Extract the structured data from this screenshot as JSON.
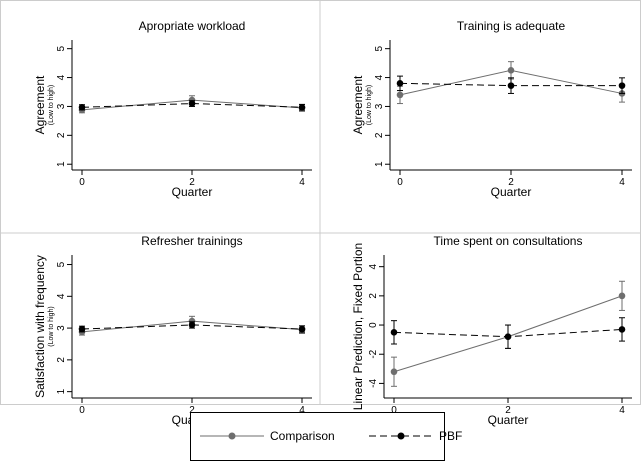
{
  "chart_data": [
    {
      "type": "line",
      "title": "Apropriate workload",
      "xlabel": "Quarter",
      "ylabel": "Agreement",
      "ylabel_sub": "(Low to high)",
      "x": [
        0,
        2,
        4
      ],
      "xticks": [
        "0",
        "2",
        "4"
      ],
      "yticks": [
        "1",
        "2",
        "3",
        "4",
        "5"
      ],
      "ylim": [
        0.8,
        5.3
      ],
      "grid": false,
      "series": [
        {
          "name": "Comparison",
          "values": [
            2.88,
            3.22,
            2.95
          ],
          "ci_low": [
            2.78,
            3.07,
            2.83
          ],
          "ci_high": [
            2.98,
            3.37,
            3.07
          ]
        },
        {
          "name": "PBF",
          "values": [
            2.97,
            3.1,
            2.97
          ],
          "ci_low": [
            2.88,
            3.0,
            2.87
          ],
          "ci_high": [
            3.06,
            3.2,
            3.07
          ]
        }
      ]
    },
    {
      "type": "line",
      "title": "Training is adequate",
      "xlabel": "Quarter",
      "ylabel": "Agreement",
      "ylabel_sub": "(Low to high)",
      "x": [
        0,
        2,
        4
      ],
      "xticks": [
        "0",
        "2",
        "4"
      ],
      "yticks": [
        "1",
        "2",
        "3",
        "4",
        "5"
      ],
      "ylim": [
        0.8,
        5.3
      ],
      "grid": false,
      "series": [
        {
          "name": "Comparison",
          "values": [
            3.4,
            4.25,
            3.45
          ],
          "ci_low": [
            3.1,
            3.95,
            3.15
          ],
          "ci_high": [
            3.7,
            4.55,
            3.75
          ]
        },
        {
          "name": "PBF",
          "values": [
            3.8,
            3.72,
            3.72
          ],
          "ci_low": [
            3.55,
            3.45,
            3.45
          ],
          "ci_high": [
            4.05,
            3.99,
            3.99
          ]
        }
      ]
    },
    {
      "type": "line",
      "title": "Refresher trainings",
      "xlabel": "Quarter",
      "ylabel": "Satisfaction with frequency",
      "ylabel_sub": "(Low to high)",
      "x": [
        0,
        2,
        4
      ],
      "xticks": [
        "0",
        "2",
        "4"
      ],
      "yticks": [
        "1",
        "2",
        "3",
        "4",
        "5"
      ],
      "ylim": [
        0.8,
        5.3
      ],
      "grid": false,
      "series": [
        {
          "name": "Comparison",
          "values": [
            2.88,
            3.22,
            2.95
          ],
          "ci_low": [
            2.78,
            3.07,
            2.83
          ],
          "ci_high": [
            2.98,
            3.37,
            3.07
          ]
        },
        {
          "name": "PBF",
          "values": [
            2.97,
            3.1,
            2.97
          ],
          "ci_low": [
            2.88,
            3.0,
            2.87
          ],
          "ci_high": [
            3.06,
            3.2,
            3.07
          ]
        }
      ]
    },
    {
      "type": "line",
      "title": "Time spent on consultations",
      "xlabel": "Quarter",
      "ylabel": "Linear Prediction, Fixed Portion",
      "ylabel_sub": "",
      "x": [
        0,
        2,
        4
      ],
      "xticks": [
        "0",
        "2",
        "4"
      ],
      "yticks": [
        "-4",
        "-2",
        "0",
        "2",
        "4"
      ],
      "ylim": [
        -5.0,
        4.8
      ],
      "grid": false,
      "series": [
        {
          "name": "Comparison",
          "values": [
            -3.2,
            -0.8,
            2.0
          ],
          "ci_low": [
            -4.2,
            -1.6,
            1.0
          ],
          "ci_high": [
            -2.2,
            0.0,
            3.0
          ]
        },
        {
          "name": "PBF",
          "values": [
            -0.5,
            -0.8,
            -0.3
          ],
          "ci_low": [
            -1.3,
            -1.6,
            -1.1
          ],
          "ci_high": [
            0.3,
            0.0,
            0.5
          ]
        }
      ]
    }
  ],
  "legend": {
    "position": "bottom-center",
    "items": [
      {
        "label": "Comparison",
        "color": "#6e6e6e",
        "dash": false
      },
      {
        "label": "PBF",
        "color": "#000000",
        "dash": true
      }
    ]
  },
  "colors": {
    "comparison": "#6e6e6e",
    "pbf": "#000000",
    "frame": "#cccccc"
  }
}
